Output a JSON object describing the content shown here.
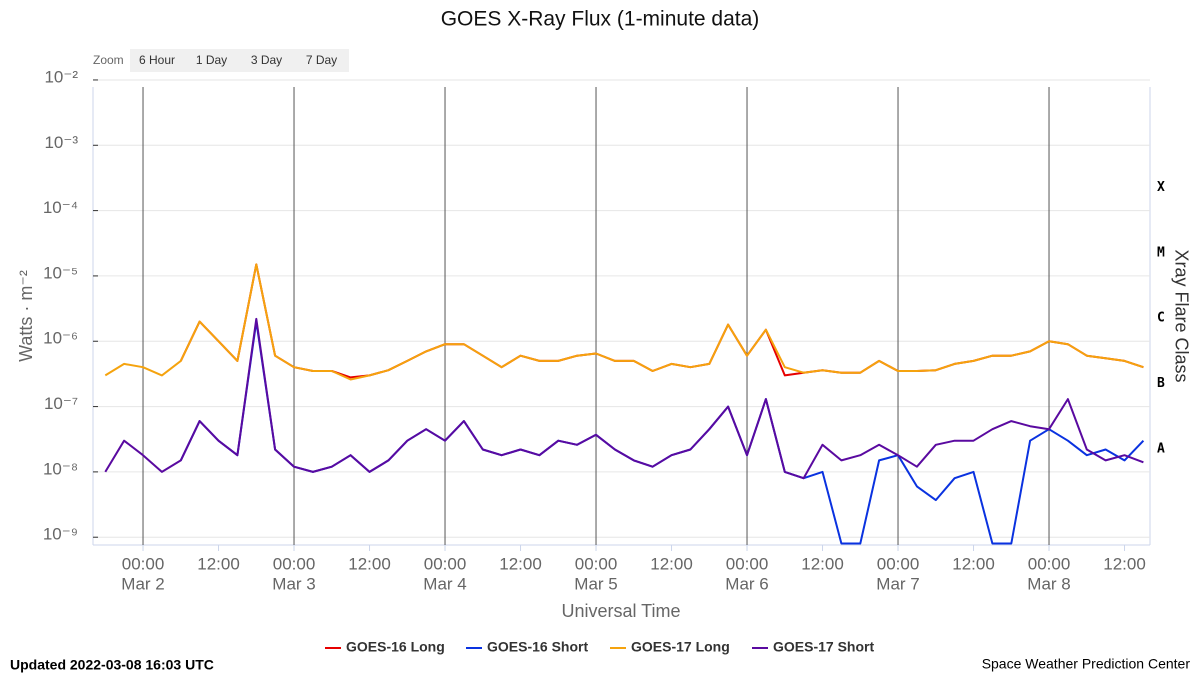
{
  "chart_data": {
    "type": "line",
    "title": "GOES X-Ray Flux (1-minute data)",
    "x_label": "Universal Time",
    "y_label": "Watts · m⁻²",
    "y2_label": "Xray Flare Class",
    "log_y": true,
    "grid": true,
    "xlim": [
      "Mar 1 16:03",
      "Mar 8 16:03"
    ],
    "ylim": [
      7.6e-10,
      0.0078
    ],
    "yticks": [
      {
        "value": 0.01,
        "label": "10⁻²"
      },
      {
        "value": 0.001,
        "label": "10⁻³"
      },
      {
        "value": 0.0001,
        "label": "10⁻⁴"
      },
      {
        "value": 1e-05,
        "label": "10⁻⁵"
      },
      {
        "value": 1e-06,
        "label": "10⁻⁶"
      },
      {
        "value": 1e-07,
        "label": "10⁻⁷"
      },
      {
        "value": 1e-08,
        "label": "10⁻⁸"
      },
      {
        "value": 1e-09,
        "label": "10⁻⁹"
      }
    ],
    "xticks": [
      {
        "value": "Mar 2 00:00",
        "label": "00:00",
        "date": "Mar 2"
      },
      {
        "value": "Mar 2 12:00",
        "label": "12:00"
      },
      {
        "value": "Mar 3 00:00",
        "label": "00:00",
        "date": "Mar 3"
      },
      {
        "value": "Mar 3 12:00",
        "label": "12:00"
      },
      {
        "value": "Mar 4 00:00",
        "label": "00:00",
        "date": "Mar 4"
      },
      {
        "value": "Mar 4 12:00",
        "label": "12:00"
      },
      {
        "value": "Mar 5 00:00",
        "label": "00:00",
        "date": "Mar 5"
      },
      {
        "value": "Mar 5 12:00",
        "label": "12:00"
      },
      {
        "value": "Mar 6 00:00",
        "label": "00:00",
        "date": "Mar 6"
      },
      {
        "value": "Mar 6 12:00",
        "label": "12:00"
      },
      {
        "value": "Mar 7 00:00",
        "label": "00:00",
        "date": "Mar 7"
      },
      {
        "value": "Mar 7 12:00",
        "label": "12:00"
      },
      {
        "value": "Mar 8 00:00",
        "label": "00:00",
        "date": "Mar 8"
      },
      {
        "value": "Mar 8 12:00",
        "label": "12:00"
      }
    ],
    "flare_classes": [
      {
        "label": "X",
        "value": 0.0001
      },
      {
        "label": "M",
        "value": 1e-05
      },
      {
        "label": "C",
        "value": 1e-06
      },
      {
        "label": "B",
        "value": 1e-07
      },
      {
        "label": "A",
        "value": 1e-08
      }
    ],
    "x": [
      "Mar 1 18:00",
      "Mar 1 21:00",
      "Mar 2 00:00",
      "Mar 2 03:00",
      "Mar 2 06:00",
      "Mar 2 09:00",
      "Mar 2 12:00",
      "Mar 2 15:00",
      "Mar 2 18:00",
      "Mar 2 21:00",
      "Mar 3 00:00",
      "Mar 3 03:00",
      "Mar 3 06:00",
      "Mar 3 09:00",
      "Mar 3 12:00",
      "Mar 3 15:00",
      "Mar 3 18:00",
      "Mar 3 21:00",
      "Mar 4 00:00",
      "Mar 4 03:00",
      "Mar 4 06:00",
      "Mar 4 09:00",
      "Mar 4 12:00",
      "Mar 4 15:00",
      "Mar 4 18:00",
      "Mar 4 21:00",
      "Mar 5 00:00",
      "Mar 5 03:00",
      "Mar 5 06:00",
      "Mar 5 09:00",
      "Mar 5 12:00",
      "Mar 5 15:00",
      "Mar 5 18:00",
      "Mar 5 21:00",
      "Mar 6 00:00",
      "Mar 6 03:00",
      "Mar 6 06:00",
      "Mar 6 09:00",
      "Mar 6 12:00",
      "Mar 6 15:00",
      "Mar 6 18:00",
      "Mar 6 21:00",
      "Mar 7 00:00",
      "Mar 7 03:00",
      "Mar 7 06:00",
      "Mar 7 09:00",
      "Mar 7 12:00",
      "Mar 7 15:00",
      "Mar 7 18:00",
      "Mar 7 21:00",
      "Mar 8 00:00",
      "Mar 8 03:00",
      "Mar 8 06:00",
      "Mar 8 09:00",
      "Mar 8 12:00",
      "Mar 8 15:00"
    ],
    "series": [
      {
        "name": "GOES-16 Long",
        "color": "#e60000",
        "values": [
          null,
          null,
          null,
          null,
          5e-07,
          2e-06,
          1e-06,
          5e-07,
          1.5e-05,
          6e-07,
          4e-07,
          3.5e-07,
          3.5e-07,
          2.8e-07,
          3e-07,
          3.6e-07,
          5e-07,
          7e-07,
          9e-07,
          9e-07,
          6e-07,
          4e-07,
          6e-07,
          5e-07,
          5e-07,
          6e-07,
          6.5e-07,
          5e-07,
          5e-07,
          3.5e-07,
          4.5e-07,
          4e-07,
          4.5e-07,
          1.8e-06,
          6e-07,
          1.5e-06,
          3e-07,
          3.3e-07,
          3.6e-07,
          3.3e-07,
          3.3e-07,
          5e-07,
          3.5e-07,
          3.5e-07,
          3.6e-07,
          4.5e-07,
          5e-07,
          6e-07,
          6e-07,
          7e-07,
          1e-06,
          9e-07,
          6e-07,
          5.5e-07,
          5e-07,
          4e-07
        ]
      },
      {
        "name": "GOES-16 Short",
        "color": "#0a32e0",
        "values": [
          null,
          null,
          null,
          null,
          1.5e-08,
          6e-08,
          3e-08,
          1.8e-08,
          2e-06,
          2.2e-08,
          1.2e-08,
          1e-08,
          1.2e-08,
          1.8e-08,
          1e-08,
          1.5e-08,
          3e-08,
          4.5e-08,
          3e-08,
          6e-08,
          2.2e-08,
          1.8e-08,
          2.2e-08,
          1.8e-08,
          3e-08,
          2.6e-08,
          3.7e-08,
          2.2e-08,
          1.5e-08,
          1.2e-08,
          1.8e-08,
          2.2e-08,
          4.5e-08,
          1e-07,
          1.8e-08,
          1.3e-07,
          1e-08,
          8e-09,
          1e-08,
          8e-10,
          8e-10,
          1.5e-08,
          1.8e-08,
          6e-09,
          3.7e-09,
          8e-09,
          1e-08,
          8e-10,
          8e-10,
          3e-08,
          4.5e-08,
          3e-08,
          1.8e-08,
          2.2e-08,
          1.5e-08,
          3e-08
        ]
      },
      {
        "name": "GOES-17 Long",
        "color": "#f5a30e",
        "values": [
          3e-07,
          4.5e-07,
          4e-07,
          3e-07,
          5e-07,
          2e-06,
          1e-06,
          5e-07,
          1.5e-05,
          6e-07,
          4e-07,
          3.5e-07,
          3.5e-07,
          2.6e-07,
          3e-07,
          3.6e-07,
          5e-07,
          7e-07,
          9e-07,
          9e-07,
          6e-07,
          4e-07,
          6e-07,
          5e-07,
          5e-07,
          6e-07,
          6.5e-07,
          5e-07,
          5e-07,
          3.5e-07,
          4.5e-07,
          4e-07,
          4.5e-07,
          1.8e-06,
          6e-07,
          1.5e-06,
          4e-07,
          3.3e-07,
          3.6e-07,
          3.3e-07,
          3.3e-07,
          5e-07,
          3.5e-07,
          3.5e-07,
          3.6e-07,
          4.5e-07,
          5e-07,
          6e-07,
          6e-07,
          7e-07,
          1e-06,
          9e-07,
          6e-07,
          5.5e-07,
          5e-07,
          4e-07
        ]
      },
      {
        "name": "GOES-17 Short",
        "color": "#5a0aa0",
        "values": [
          1e-08,
          3e-08,
          1.8e-08,
          1e-08,
          1.5e-08,
          6e-08,
          3e-08,
          1.8e-08,
          2.2e-06,
          2.2e-08,
          1.2e-08,
          1e-08,
          1.2e-08,
          1.8e-08,
          1e-08,
          1.5e-08,
          3e-08,
          4.5e-08,
          3e-08,
          6e-08,
          2.2e-08,
          1.8e-08,
          2.2e-08,
          1.8e-08,
          3e-08,
          2.6e-08,
          3.7e-08,
          2.2e-08,
          1.5e-08,
          1.2e-08,
          1.8e-08,
          2.2e-08,
          4.5e-08,
          1e-07,
          1.8e-08,
          1.3e-07,
          1e-08,
          8e-09,
          2.6e-08,
          1.5e-08,
          1.8e-08,
          2.6e-08,
          1.8e-08,
          1.2e-08,
          2.6e-08,
          3e-08,
          3e-08,
          4.5e-08,
          6e-08,
          5e-08,
          4.5e-08,
          1.3e-07,
          2.2e-08,
          1.5e-08,
          1.8e-08,
          1.4e-08
        ]
      }
    ]
  },
  "zoom": {
    "label": "Zoom",
    "buttons": [
      "6 Hour",
      "1 Day",
      "3 Day",
      "7 Day"
    ]
  },
  "footer": {
    "updated": "Updated 2022-03-08 16:03 UTC",
    "credit": "Space Weather Prediction Center"
  }
}
